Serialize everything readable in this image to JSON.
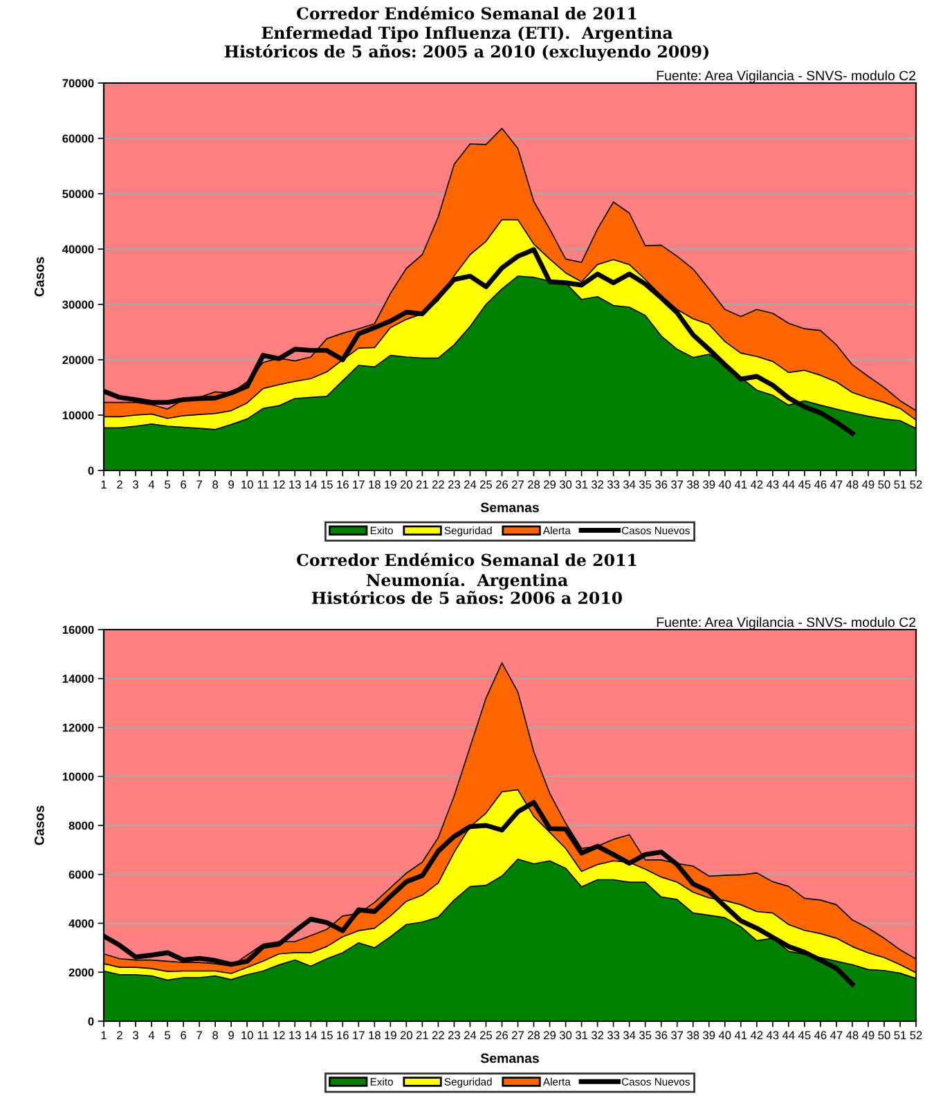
{
  "chart_data": [
    {
      "type": "area",
      "title": "Corredor Endémico Semanal de 2011",
      "subtitle": "Enfermedad Tipo Influenza (ETI).  Argentina\nHistóricos de 5 años: 2005 a 2010 (excluyendo 2009)",
      "xlabel": "Semanas",
      "ylabel": "Casos",
      "annotations": [
        "Fuente: Area Vigilancia - SNVS- modulo C2"
      ],
      "categories": [
        "1",
        "2",
        "3",
        "4",
        "5",
        "6",
        "7",
        "8",
        "9",
        "10",
        "11",
        "12",
        "13",
        "14",
        "15",
        "16",
        "17",
        "18",
        "19",
        "20",
        "21",
        "22",
        "23",
        "24",
        "25",
        "26",
        "27",
        "28",
        "29",
        "30",
        "31",
        "32",
        "33",
        "34",
        "35",
        "36",
        "37",
        "38",
        "39",
        "40",
        "41",
        "42",
        "43",
        "44",
        "45",
        "46",
        "47",
        "48",
        "49",
        "50",
        "51",
        "52"
      ],
      "ylim": [
        0,
        70000
      ],
      "yticks": [
        0,
        10000,
        20000,
        30000,
        40000,
        50000,
        60000,
        70000
      ],
      "grid": "y",
      "legend": "bottom",
      "bands": [
        {
          "axis": "y",
          "from": 0,
          "to": 70000,
          "color": "#ff8080"
        }
      ],
      "series": [
        {
          "name": "Exito",
          "color": "#008000",
          "values": [
            7700,
            7700,
            8000,
            8400,
            8000,
            7800,
            7600,
            7400,
            8300,
            9300,
            11200,
            11700,
            13000,
            13200,
            13400,
            16200,
            19000,
            18700,
            20800,
            20500,
            20300,
            20300,
            22700,
            26000,
            30000,
            32800,
            35100,
            34900,
            34200,
            33900,
            30900,
            31400,
            29800,
            29500,
            28000,
            24300,
            21900,
            20400,
            21000,
            19100,
            16800,
            14500,
            13600,
            11800,
            12600,
            11800,
            11100,
            10400,
            9800,
            9300,
            9000,
            7600
          ]
        },
        {
          "name": "Seguridad",
          "color": "#ffff00",
          "values": [
            9700,
            9700,
            10000,
            10200,
            9400,
            9900,
            10100,
            10300,
            10800,
            12200,
            14800,
            15500,
            16100,
            16600,
            17800,
            20000,
            22100,
            22200,
            25800,
            27300,
            28300,
            30700,
            35200,
            39000,
            41400,
            45300,
            45300,
            40900,
            38200,
            35700,
            34100,
            37200,
            38100,
            37200,
            34500,
            31600,
            29100,
            27400,
            26400,
            23300,
            21200,
            20600,
            19700,
            17700,
            18100,
            17200,
            16000,
            14100,
            13100,
            12300,
            11200,
            9100
          ]
        },
        {
          "name": "Alerta",
          "color": "#ff6600",
          "values": [
            12300,
            12300,
            12300,
            11900,
            11100,
            12800,
            13200,
            14200,
            14000,
            16000,
            19500,
            20300,
            19800,
            20500,
            23800,
            24800,
            25600,
            26500,
            32000,
            36500,
            39000,
            45800,
            55300,
            59000,
            58900,
            61800,
            58200,
            48600,
            43600,
            38200,
            37600,
            43600,
            48500,
            46500,
            40600,
            40700,
            38700,
            36400,
            32800,
            29100,
            27800,
            29100,
            28400,
            26600,
            25600,
            25300,
            22700,
            19100,
            17000,
            15000,
            12600,
            10800
          ]
        },
        {
          "name": "Casos Nuevos",
          "type": "line",
          "color": "#000000",
          "values": [
            14300,
            13200,
            12800,
            12300,
            12300,
            12800,
            13000,
            13100,
            14000,
            15200,
            20800,
            20200,
            21900,
            21700,
            21700,
            20000,
            24700,
            25800,
            27000,
            28600,
            28300,
            31300,
            34500,
            35100,
            33200,
            36600,
            38700,
            39900,
            34100,
            33900,
            33500,
            35500,
            33900,
            35500,
            33700,
            31200,
            28500,
            24500,
            21900,
            19100,
            16500,
            17000,
            15400,
            13100,
            11500,
            10400,
            8700,
            6700,
            null,
            null,
            null,
            null
          ]
        }
      ]
    },
    {
      "type": "area",
      "title": "Corredor Endémico Semanal de 2011",
      "subtitle": "Neumonía.  Argentina\nHistóricos de 5 años: 2006 a 2010",
      "xlabel": "Semanas",
      "ylabel": "Casos",
      "annotations": [
        "Fuente: Area Vigilancia - SNVS- modulo C2"
      ],
      "categories": [
        "1",
        "2",
        "3",
        "4",
        "5",
        "6",
        "7",
        "8",
        "9",
        "10",
        "11",
        "12",
        "13",
        "14",
        "15",
        "16",
        "17",
        "18",
        "19",
        "20",
        "21",
        "22",
        "23",
        "24",
        "25",
        "26",
        "27",
        "28",
        "29",
        "30",
        "31",
        "32",
        "33",
        "34",
        "35",
        "36",
        "37",
        "38",
        "39",
        "40",
        "41",
        "42",
        "43",
        "44",
        "45",
        "46",
        "47",
        "48",
        "49",
        "50",
        "51",
        "52"
      ],
      "ylim": [
        0,
        16000
      ],
      "yticks": [
        0,
        2000,
        4000,
        6000,
        8000,
        10000,
        12000,
        14000,
        16000
      ],
      "grid": "y",
      "legend": "bottom",
      "bands": [
        {
          "axis": "y",
          "from": 0,
          "to": 16000,
          "color": "#ff8080"
        }
      ],
      "series": [
        {
          "name": "Exito",
          "color": "#008000",
          "values": [
            2050,
            1900,
            1900,
            1850,
            1680,
            1780,
            1780,
            1850,
            1700,
            1900,
            2050,
            2300,
            2500,
            2250,
            2550,
            2800,
            3200,
            3000,
            3450,
            3950,
            4050,
            4250,
            4950,
            5500,
            5550,
            5930,
            6620,
            6430,
            6550,
            6250,
            5490,
            5780,
            5780,
            5680,
            5680,
            5080,
            4970,
            4420,
            4330,
            4230,
            3860,
            3290,
            3390,
            2860,
            2730,
            2600,
            2450,
            2310,
            2110,
            2070,
            1960,
            1750
          ]
        },
        {
          "name": "Seguridad",
          "color": "#ffff00",
          "values": [
            2350,
            2200,
            2200,
            2150,
            2030,
            2050,
            2050,
            2050,
            1950,
            2200,
            2450,
            2750,
            2800,
            2800,
            3050,
            3450,
            3700,
            3800,
            4300,
            4900,
            5150,
            5650,
            6900,
            7950,
            8500,
            9370,
            9460,
            8370,
            7720,
            7060,
            6120,
            6400,
            6550,
            6490,
            6210,
            5890,
            5680,
            5270,
            5040,
            4930,
            4760,
            4480,
            4420,
            3950,
            3710,
            3580,
            3390,
            3050,
            2790,
            2600,
            2310,
            1980
          ]
        },
        {
          "name": "Alerta",
          "color": "#ff6600",
          "values": [
            2750,
            2550,
            2500,
            2500,
            2450,
            2400,
            2400,
            2350,
            2250,
            2700,
            3150,
            3250,
            3250,
            3500,
            3750,
            4300,
            4400,
            4850,
            5450,
            6050,
            6500,
            7500,
            9200,
            11200,
            13200,
            14640,
            13450,
            11010,
            9310,
            8090,
            7060,
            7150,
            7430,
            7620,
            6590,
            6590,
            6440,
            6340,
            5930,
            5960,
            5980,
            6060,
            5700,
            5510,
            5020,
            4950,
            4760,
            4140,
            3800,
            3390,
            2920,
            2540
          ]
        },
        {
          "name": "Casos Nuevos",
          "type": "line",
          "color": "#000000",
          "values": [
            3480,
            3100,
            2620,
            2700,
            2800,
            2500,
            2570,
            2480,
            2320,
            2450,
            3050,
            3150,
            3680,
            4170,
            4030,
            3700,
            4550,
            4480,
            5100,
            5700,
            5950,
            6950,
            7550,
            7950,
            8000,
            7810,
            8560,
            8940,
            7870,
            7850,
            6870,
            7150,
            6810,
            6450,
            6810,
            6910,
            6400,
            5610,
            5310,
            4700,
            4100,
            3800,
            3430,
            3050,
            2820,
            2500,
            2160,
            1510,
            null,
            null,
            null,
            null
          ]
        }
      ]
    }
  ]
}
